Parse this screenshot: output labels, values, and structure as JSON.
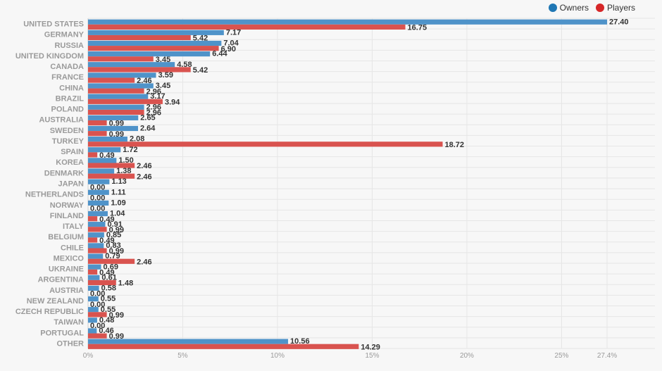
{
  "chart_data": {
    "type": "bar",
    "orientation": "horizontal",
    "categories": [
      "UNITED STATES",
      "GERMANY",
      "RUSSIA",
      "UNITED KINGDOM",
      "CANADA",
      "FRANCE",
      "CHINA",
      "BRAZIL",
      "POLAND",
      "AUSTRALIA",
      "SWEDEN",
      "TURKEY",
      "SPAIN",
      "KOREA",
      "DENMARK",
      "JAPAN",
      "NETHERLANDS",
      "NORWAY",
      "FINLAND",
      "ITALY",
      "BELGIUM",
      "CHILE",
      "MEXICO",
      "UKRAINE",
      "ARGENTINA",
      "AUSTRIA",
      "NEW ZEALAND",
      "CZECH REPUBLIC",
      "TAIWAN",
      "PORTUGAL",
      "OTHER"
    ],
    "series": [
      {
        "name": "Owners",
        "color": "#4f93c9",
        "values": [
          27.4,
          7.17,
          7.04,
          6.44,
          4.58,
          3.59,
          3.45,
          3.17,
          2.96,
          2.65,
          2.64,
          2.08,
          1.72,
          1.5,
          1.38,
          1.13,
          1.11,
          1.09,
          1.04,
          0.91,
          0.85,
          0.83,
          0.79,
          0.69,
          0.61,
          0.58,
          0.55,
          0.55,
          0.48,
          0.46,
          10.56
        ],
        "labels": [
          "27.40",
          "7.17",
          "7.04",
          "6.44",
          "4.58",
          "3.59",
          "3.45",
          "3.17",
          "2.96",
          "2.65",
          "2.64",
          "2.08",
          "1.72",
          "1.50",
          "1.38",
          "1.13",
          "1.11",
          "1.09",
          "1.04",
          "0.91",
          "0.85",
          "0.83",
          "0.79",
          "0.69",
          "0.61",
          "0.58",
          "0.55",
          "0.55",
          "0.48",
          "0.46",
          "10.56"
        ]
      },
      {
        "name": "Players",
        "color": "#d9534f",
        "values": [
          16.75,
          5.42,
          6.9,
          3.45,
          5.42,
          2.46,
          2.96,
          3.94,
          2.96,
          0.99,
          0.99,
          18.72,
          0.49,
          2.46,
          2.46,
          0.0,
          0.0,
          0.0,
          0.49,
          0.99,
          0.49,
          0.99,
          2.46,
          0.49,
          1.48,
          0.0,
          0.0,
          0.99,
          0.0,
          0.99,
          14.29
        ],
        "labels": [
          "16.75",
          "5.42",
          "6.90",
          "3.45",
          "5.42",
          "2.46",
          "2.96",
          "3.94",
          "2.96",
          "0.99",
          "0.99",
          "18.72",
          "0.49",
          "2.46",
          "2.46",
          "0.00",
          "0.00",
          "0.00",
          "0.49",
          "0.99",
          "0.49",
          "0.99",
          "2.46",
          "0.49",
          "1.48",
          "0.00",
          "0.00",
          "0.99",
          "0.00",
          "0.99",
          "14.29"
        ]
      }
    ],
    "x_ticks": [
      "0%",
      "5%",
      "10%",
      "15%",
      "20%",
      "25%",
      "27.4%"
    ],
    "x_tick_values": [
      0,
      5,
      10,
      15,
      20,
      25,
      27.4
    ],
    "xlim": [
      0,
      27.4
    ],
    "title": "",
    "xlabel": "",
    "ylabel": "",
    "legend": "top-right",
    "grid": true
  },
  "legend": {
    "owners_label": "Owners",
    "players_label": "Players",
    "owners_color": "#1f77b4",
    "players_color": "#d62728"
  }
}
